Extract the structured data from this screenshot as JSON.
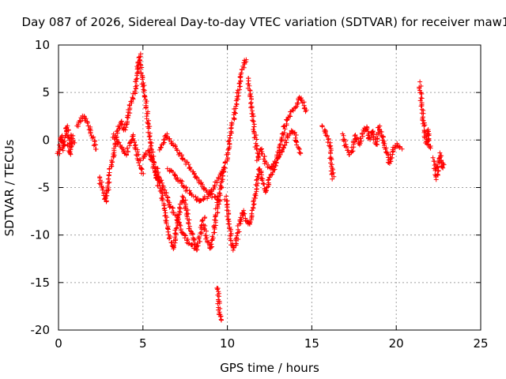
{
  "chart_data": {
    "type": "scatter",
    "title": "Day 087 of 2026, Sidereal Day-to-day VTEC variation (SDTVAR) for receiver maw1",
    "xlabel": "GPS time / hours",
    "ylabel": "SDTVAR / TECUs",
    "xlim": [
      0,
      25
    ],
    "ylim": [
      -20,
      10
    ],
    "xticks": [
      0,
      5,
      10,
      15,
      20,
      25
    ],
    "yticks": [
      -20,
      -15,
      -10,
      -5,
      0,
      5,
      10
    ],
    "xtick_labels": [
      "0",
      "5",
      "10",
      "15",
      "20",
      "25"
    ],
    "ytick_labels": [
      "-20",
      "-15",
      "-10",
      "-5",
      "0",
      "5",
      "10"
    ],
    "grid": true,
    "marker": "+",
    "color": "#ff0000",
    "series": [
      {
        "name": "arc-1",
        "points": [
          [
            0.0,
            -1.5
          ],
          [
            0.1,
            -0.5
          ],
          [
            0.2,
            0.5
          ],
          [
            0.3,
            -1.0
          ],
          [
            0.4,
            0.0
          ],
          [
            0.5,
            1.5
          ],
          [
            0.6,
            -0.5
          ],
          [
            0.7,
            -1.5
          ],
          [
            0.8,
            0.5
          ],
          [
            0.9,
            -0.5
          ]
        ]
      },
      {
        "name": "arc-2",
        "points": [
          [
            1.1,
            1.5
          ],
          [
            1.3,
            2.0
          ],
          [
            1.5,
            2.5
          ],
          [
            1.7,
            2.0
          ],
          [
            1.9,
            1.0
          ],
          [
            2.1,
            0.0
          ],
          [
            2.2,
            -1.0
          ]
        ]
      },
      {
        "name": "arc-3",
        "points": [
          [
            2.4,
            -4.0
          ],
          [
            2.6,
            -5.0
          ],
          [
            2.8,
            -6.5
          ],
          [
            3.0,
            -4.0
          ],
          [
            3.1,
            -2.5
          ],
          [
            3.3,
            -1.0
          ],
          [
            3.5,
            1.0
          ],
          [
            3.7,
            2.0
          ],
          [
            3.9,
            1.0
          ],
          [
            4.1,
            2.5
          ],
          [
            4.3,
            4.0
          ],
          [
            4.5,
            5.0
          ],
          [
            4.7,
            7.5
          ],
          [
            4.8,
            9.0
          ],
          [
            4.9,
            7.0
          ],
          [
            5.1,
            5.0
          ],
          [
            5.3,
            2.0
          ],
          [
            5.5,
            -1.0
          ],
          [
            5.7,
            -3.0
          ],
          [
            5.9,
            -4.5
          ]
        ]
      },
      {
        "name": "arc-4",
        "points": [
          [
            3.2,
            0.5
          ],
          [
            3.4,
            0.0
          ],
          [
            3.6,
            -0.5
          ],
          [
            3.8,
            -1.0
          ],
          [
            4.0,
            -1.5
          ],
          [
            4.2,
            -0.5
          ],
          [
            4.4,
            0.5
          ],
          [
            4.6,
            -1.0
          ],
          [
            4.8,
            -2.5
          ],
          [
            5.0,
            -3.5
          ]
        ]
      },
      {
        "name": "arc-5",
        "points": [
          [
            5.0,
            -2.0
          ],
          [
            5.3,
            -1.0
          ],
          [
            5.6,
            -2.5
          ],
          [
            5.9,
            -4.5
          ],
          [
            6.2,
            -6.5
          ],
          [
            6.4,
            -8.5
          ],
          [
            6.6,
            -10.5
          ],
          [
            6.8,
            -11.5
          ],
          [
            7.0,
            -9.0
          ],
          [
            7.2,
            -7.0
          ],
          [
            7.4,
            -6.0
          ],
          [
            7.6,
            -7.5
          ],
          [
            7.8,
            -9.5
          ],
          [
            8.0,
            -10.5
          ],
          [
            8.2,
            -11.5
          ],
          [
            8.4,
            -10.0
          ],
          [
            8.6,
            -8.0
          ]
        ]
      },
      {
        "name": "arc-6",
        "points": [
          [
            5.8,
            -3.0
          ],
          [
            6.2,
            -5.0
          ],
          [
            6.6,
            -7.0
          ],
          [
            7.0,
            -8.0
          ],
          [
            7.4,
            -10.0
          ],
          [
            7.8,
            -11.0
          ],
          [
            8.2,
            -11.5
          ]
        ]
      },
      {
        "name": "arc-7",
        "points": [
          [
            6.0,
            -1.0
          ],
          [
            6.4,
            0.5
          ],
          [
            6.8,
            -0.5
          ],
          [
            7.2,
            -1.5
          ],
          [
            7.6,
            -2.5
          ],
          [
            8.0,
            -3.5
          ],
          [
            8.4,
            -4.5
          ],
          [
            8.8,
            -5.5
          ],
          [
            9.2,
            -6.0
          ],
          [
            9.6,
            -6.5
          ]
        ]
      },
      {
        "name": "arc-8",
        "points": [
          [
            6.5,
            -3.0
          ],
          [
            7.0,
            -4.0
          ],
          [
            7.5,
            -5.0
          ],
          [
            8.0,
            -6.0
          ],
          [
            8.5,
            -6.5
          ],
          [
            9.0,
            -5.5
          ],
          [
            9.5,
            -4.0
          ],
          [
            9.8,
            -3.0
          ]
        ]
      },
      {
        "name": "arc-9",
        "points": [
          [
            9.4,
            -15.5
          ],
          [
            9.45,
            -16.5
          ],
          [
            9.5,
            -17.5
          ],
          [
            9.55,
            -18.5
          ],
          [
            9.6,
            -19.0
          ]
        ]
      },
      {
        "name": "arc-10",
        "points": [
          [
            8.6,
            -9.0
          ],
          [
            8.8,
            -10.5
          ],
          [
            9.0,
            -11.5
          ],
          [
            9.2,
            -9.5
          ],
          [
            9.4,
            -7.0
          ],
          [
            9.6,
            -5.0
          ],
          [
            9.8,
            -3.0
          ],
          [
            10.0,
            -1.5
          ],
          [
            10.2,
            1.0
          ],
          [
            10.4,
            2.5
          ],
          [
            10.6,
            4.5
          ],
          [
            10.8,
            6.5
          ],
          [
            11.0,
            8.0
          ],
          [
            11.1,
            8.5
          ]
        ]
      },
      {
        "name": "arc-11",
        "points": [
          [
            9.9,
            -6.0
          ],
          [
            10.1,
            -9.0
          ],
          [
            10.3,
            -11.5
          ],
          [
            10.5,
            -11.0
          ],
          [
            10.7,
            -9.0
          ],
          [
            10.9,
            -7.5
          ],
          [
            11.1,
            -8.5
          ],
          [
            11.3,
            -9.0
          ],
          [
            11.5,
            -7.0
          ],
          [
            11.7,
            -5.0
          ],
          [
            11.9,
            -3.0
          ],
          [
            12.1,
            -4.5
          ],
          [
            12.3,
            -5.5
          ],
          [
            12.5,
            -4.0
          ],
          [
            12.8,
            -3.0
          ],
          [
            13.0,
            -2.0
          ],
          [
            13.3,
            -1.0
          ],
          [
            13.6,
            0.5
          ],
          [
            13.9,
            1.0
          ],
          [
            14.1,
            0.0
          ],
          [
            14.3,
            -1.5
          ]
        ]
      },
      {
        "name": "arc-12",
        "points": [
          [
            11.2,
            6.5
          ],
          [
            11.4,
            4.0
          ],
          [
            11.6,
            1.0
          ],
          [
            11.8,
            -2.0
          ],
          [
            12.0,
            -1.0
          ],
          [
            12.3,
            -2.5
          ],
          [
            12.6,
            -3.0
          ],
          [
            12.9,
            -2.0
          ],
          [
            13.2,
            0.0
          ],
          [
            13.5,
            2.0
          ],
          [
            13.8,
            3.0
          ],
          [
            14.1,
            3.5
          ],
          [
            14.3,
            4.5
          ],
          [
            14.5,
            4.0
          ],
          [
            14.7,
            3.0
          ]
        ]
      },
      {
        "name": "arc-13",
        "points": [
          [
            15.6,
            1.5
          ],
          [
            15.8,
            1.0
          ],
          [
            16.0,
            0.0
          ],
          [
            16.1,
            -1.5
          ],
          [
            16.2,
            -3.0
          ],
          [
            16.25,
            -4.0
          ]
        ]
      },
      {
        "name": "arc-14",
        "points": [
          [
            16.8,
            0.5
          ],
          [
            17.0,
            -0.5
          ],
          [
            17.2,
            -1.5
          ],
          [
            17.4,
            -1.0
          ],
          [
            17.6,
            0.5
          ],
          [
            17.8,
            -0.5
          ],
          [
            18.0,
            0.5
          ],
          [
            18.2,
            1.5
          ],
          [
            18.4,
            0.0
          ],
          [
            18.6,
            1.0
          ],
          [
            18.8,
            -0.5
          ],
          [
            19.0,
            1.5
          ],
          [
            19.2,
            0.0
          ],
          [
            19.4,
            -1.0
          ],
          [
            19.6,
            -2.5
          ],
          [
            19.8,
            -1.0
          ],
          [
            20.0,
            -0.5
          ],
          [
            20.3,
            -1.0
          ]
        ]
      },
      {
        "name": "arc-15",
        "points": [
          [
            21.4,
            6.0
          ],
          [
            21.5,
            4.0
          ],
          [
            21.6,
            2.0
          ],
          [
            21.7,
            0.5
          ],
          [
            21.8,
            -0.5
          ],
          [
            21.9,
            1.0
          ],
          [
            22.0,
            -1.0
          ]
        ]
      },
      {
        "name": "arc-16",
        "points": [
          [
            22.2,
            -2.0
          ],
          [
            22.3,
            -3.0
          ],
          [
            22.4,
            -4.0
          ],
          [
            22.5,
            -2.5
          ],
          [
            22.6,
            -1.5
          ],
          [
            22.7,
            -3.0
          ],
          [
            22.8,
            -2.5
          ]
        ]
      }
    ]
  }
}
